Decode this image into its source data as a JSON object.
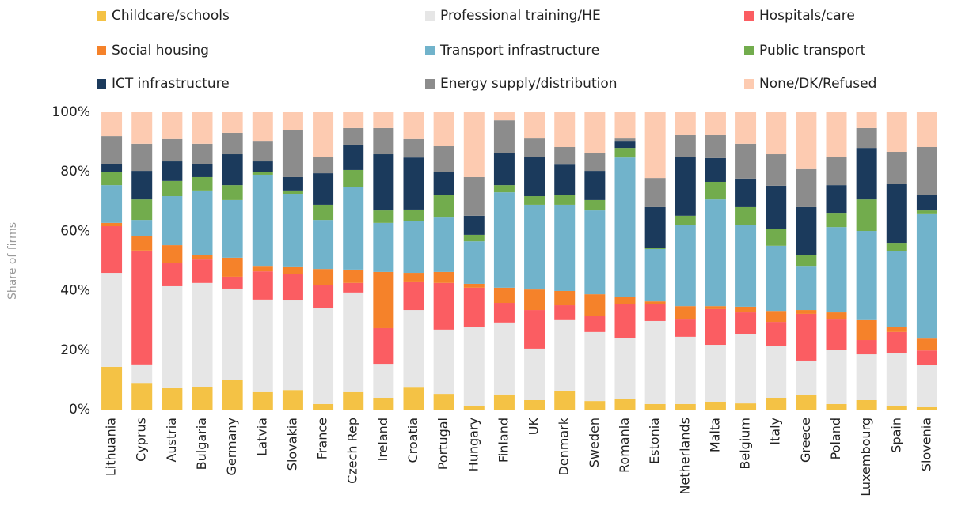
{
  "chart_data": {
    "type": "stacked_bar",
    "y_label": "Share of firms",
    "categories": [
      "Lithuania",
      "Cyprus",
      "Austria",
      "Bulgaria",
      "Germany",
      "Latvia",
      "Slovakia",
      "France",
      "Czech Rep",
      "Ireland",
      "Croatia",
      "Portugal",
      "Hungary",
      "Finland",
      "UK",
      "Denmark",
      "Sweden",
      "Romania",
      "Estonia",
      "Netherlands",
      "Malta",
      "Belgium",
      "Italy",
      "Greece",
      "Poland",
      "Luxembourg",
      "Spain",
      "Slovenia"
    ],
    "ylim": [
      0,
      100
    ],
    "yticks": [
      {
        "value": 0,
        "label": "0%"
      },
      {
        "value": 20,
        "label": "20%"
      },
      {
        "value": 40,
        "label": "40%"
      },
      {
        "value": 60,
        "label": "60%"
      },
      {
        "value": 80,
        "label": "80%"
      },
      {
        "value": 100,
        "label": "100%"
      }
    ],
    "grid": false,
    "series": [
      {
        "name": "Childcare/schools",
        "color": "#f4c245",
        "values": [
          14.4,
          9,
          7.2,
          7.7,
          10.1,
          5.9,
          6.6,
          1.9,
          5.9,
          4,
          7.4,
          5.3,
          1.3,
          5.1,
          3.2,
          6.4,
          2.9,
          3.7,
          1.9,
          1.9,
          2.7,
          2.1,
          4,
          4.8,
          1.9,
          3.2,
          1.1,
          0.8
        ]
      },
      {
        "name": "Professional training/HE",
        "color": "#e6e6e6",
        "values": [
          31.6,
          6.2,
          34.3,
          34.9,
          30.6,
          31.1,
          30.1,
          32.4,
          33.5,
          11.4,
          26.1,
          21.6,
          26.4,
          24.2,
          17.3,
          23.7,
          23.2,
          20.5,
          27.9,
          22.6,
          19.1,
          23.2,
          17.5,
          11.7,
          18.3,
          15.4,
          17.8,
          14.1
        ]
      },
      {
        "name": "Hospitals/care",
        "color": "#fb5d62",
        "values": [
          15.7,
          38.3,
          7.7,
          7.9,
          4,
          9.5,
          8.8,
          7.5,
          3.2,
          12,
          9.6,
          15.7,
          13.3,
          6.6,
          13,
          5,
          5.3,
          11.2,
          5.6,
          5.8,
          12,
          7.4,
          8,
          15.7,
          10.1,
          4.8,
          7.2,
          5
        ]
      },
      {
        "name": "Social housing",
        "color": "#f5822a",
        "values": [
          1.1,
          5,
          6.1,
          1.6,
          6.4,
          1.6,
          2.4,
          5.5,
          4.5,
          18.9,
          2.9,
          3.7,
          1.3,
          5.1,
          6.9,
          4.8,
          7.4,
          2.4,
          1,
          4.5,
          1,
          1.9,
          3.7,
          1.3,
          2.4,
          6.7,
          1.6,
          4
        ]
      },
      {
        "name": "Transport infrastructure",
        "color": "#71b3cb",
        "values": [
          12.7,
          5.3,
          16.5,
          21.6,
          19.4,
          30.9,
          24.7,
          16.5,
          27.9,
          16.5,
          17.3,
          18.3,
          14.3,
          32.1,
          28.5,
          29,
          28.2,
          47,
          17.6,
          27.2,
          35.9,
          27.6,
          21.9,
          14.6,
          28.7,
          30,
          25.5,
          42.1
        ]
      },
      {
        "name": "Public transport",
        "color": "#72ac4d",
        "values": [
          4.5,
          6.9,
          5.1,
          4.5,
          5,
          0.8,
          1.1,
          5.1,
          5.6,
          4.2,
          4,
          7.7,
          2.2,
          2.4,
          2.9,
          3.2,
          3.5,
          3.2,
          0.5,
          3.2,
          5.9,
          5.9,
          5.8,
          3.8,
          4.8,
          10.6,
          2.9,
          1
        ]
      },
      {
        "name": "ICT infrastructure",
        "color": "#1b3a5c",
        "values": [
          2.7,
          9.6,
          6.6,
          4.5,
          10.4,
          3.7,
          4.5,
          10.6,
          8.5,
          18.9,
          17.5,
          7.5,
          6.4,
          10.9,
          13.3,
          10.3,
          9.8,
          2.4,
          13.6,
          19.9,
          8,
          9.6,
          14.4,
          16.2,
          9.3,
          17.3,
          19.7,
          5.3
        ]
      },
      {
        "name": "Energy supply/distribution",
        "color": "#8c8c8c",
        "values": [
          9.3,
          9.1,
          7.5,
          6.7,
          7.2,
          6.9,
          15.9,
          5.6,
          5.6,
          8.8,
          6.2,
          9,
          13,
          10.9,
          6.1,
          5.9,
          5.9,
          0.8,
          9.8,
          7.2,
          7.7,
          11.7,
          10.6,
          12.8,
          9.6,
          6.7,
          10.9,
          16
        ]
      },
      {
        "name": "None/DK/Refused",
        "color": "#fdcbb1",
        "values": [
          8,
          10.6,
          9,
          10.6,
          6.9,
          9.6,
          5.9,
          14.9,
          5.3,
          5.3,
          9,
          11.2,
          21.8,
          2.7,
          8.8,
          11.7,
          13.8,
          8.8,
          22.1,
          7.7,
          7.7,
          10.6,
          14.1,
          19.1,
          14.9,
          5.3,
          13.3,
          11.7
        ]
      }
    ]
  }
}
